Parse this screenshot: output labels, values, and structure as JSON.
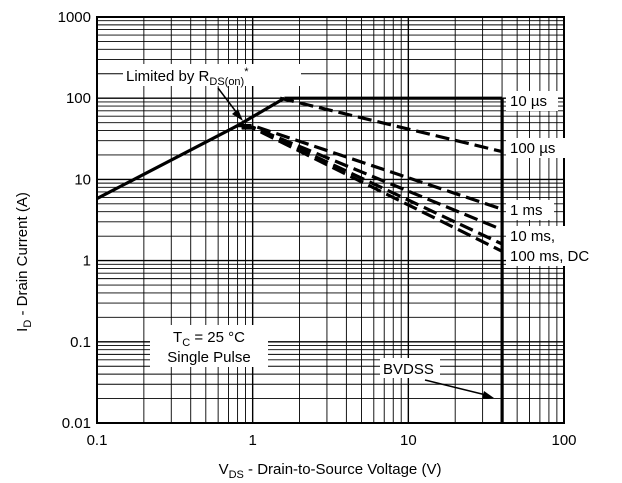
{
  "chart_data": {
    "type": "line",
    "xscale": "log",
    "yscale": "log",
    "xlim": [
      0.1,
      100
    ],
    "ylim": [
      0.01,
      1000
    ],
    "grid": true,
    "xlabel": {
      "main": "V",
      "sub": "DS",
      "rest": " - Drain-to-Source Voltage (V)"
    },
    "ylabel": {
      "main": "I",
      "sub": "D",
      "rest": " - Drain Current (A)"
    },
    "x_ticks": [
      {
        "v": 0.1,
        "label": "0.1"
      },
      {
        "v": 1,
        "label": "1"
      },
      {
        "v": 10,
        "label": "10"
      },
      {
        "v": 100,
        "label": "100"
      }
    ],
    "y_ticks": [
      {
        "v": 0.01,
        "label": "0.01"
      },
      {
        "v": 0.1,
        "label": "0.1"
      },
      {
        "v": 1,
        "label": "1"
      },
      {
        "v": 10,
        "label": "10"
      },
      {
        "v": 100,
        "label": "100"
      },
      {
        "v": 1000,
        "label": "1000"
      }
    ],
    "series": [
      {
        "name": "Limited by RDS(on)*",
        "style": "solid",
        "width": 3.2,
        "points": [
          [
            0.1,
            5.8
          ],
          [
            0.8,
            46
          ],
          [
            1.6,
            100
          ]
        ]
      },
      {
        "name": "10 µs",
        "style": "solid",
        "width": 3.2,
        "points": [
          [
            1.6,
            100
          ],
          [
            40,
            100
          ]
        ]
      },
      {
        "name": "BVDSS",
        "style": "solid",
        "width": 3.2,
        "points": [
          [
            40,
            100
          ],
          [
            40,
            0.01
          ]
        ]
      },
      {
        "name": "100 µs",
        "style": "dashed",
        "width": 3.2,
        "points": [
          [
            1.5,
            100
          ],
          [
            40,
            22
          ]
        ]
      },
      {
        "name": "1 ms",
        "style": "dashed",
        "width": 3.2,
        "points": [
          [
            0.8,
            46
          ],
          [
            1.0,
            46
          ],
          [
            40,
            4.3
          ]
        ]
      },
      {
        "name": "10 ms",
        "style": "dashed",
        "width": 3.2,
        "points": [
          [
            0.85,
            44
          ],
          [
            1.0,
            44
          ],
          [
            40,
            2.4
          ]
        ]
      },
      {
        "name": "100 ms",
        "style": "dashed",
        "width": 3.2,
        "points": [
          [
            0.85,
            44
          ],
          [
            1.0,
            44
          ],
          [
            40,
            1.6
          ]
        ]
      },
      {
        "name": "DC",
        "style": "dashed",
        "width": 3.2,
        "points": [
          [
            0.85,
            43
          ],
          [
            1.0,
            43
          ],
          [
            40,
            1.3
          ]
        ]
      }
    ],
    "annotations": {
      "limited": {
        "text": "Limited by R",
        "sub": "DS(on)",
        "sup": "*"
      },
      "conditions_line1": {
        "main": "T",
        "sub": "C",
        "rest": " = 25 °C"
      },
      "conditions_line2": "Single Pulse",
      "bvdss": "BVDSS",
      "label_10us": "10 µs",
      "label_100us": "100 µs",
      "label_1ms": "1 ms",
      "label_10ms": "10 ms,",
      "label_100ms_dc": "100 ms, DC"
    }
  }
}
